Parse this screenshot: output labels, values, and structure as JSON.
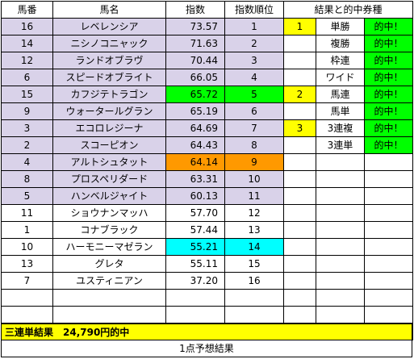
{
  "headers": [
    "馬番",
    "馬名",
    "指数",
    "指数順位",
    "結果と的中券種"
  ],
  "rows": [
    {
      "num": "16",
      "name": "レベレンシア",
      "index": "73.57",
      "rank": "1",
      "res": "1",
      "bet": "単勝",
      "hit": "的中！"
    },
    {
      "num": "14",
      "name": "ニシノコニャック",
      "index": "71.63",
      "rank": "2",
      "res": "",
      "bet": "複勝",
      "hit": "的中！"
    },
    {
      "num": "12",
      "name": "ランドオブラヴ",
      "index": "70.44",
      "rank": "3",
      "res": "",
      "bet": "枠連",
      "hit": "的中！"
    },
    {
      "num": "6",
      "name": "スピードオブライト",
      "index": "66.05",
      "rank": "4",
      "res": "",
      "bet": "ワイド",
      "hit": "的中！"
    },
    {
      "num": "15",
      "name": "カフジテトラゴン",
      "index": "65.72",
      "rank": "5",
      "res": "2",
      "bet": "馬連",
      "hit": "的中！"
    },
    {
      "num": "9",
      "name": "ウォータールグラン",
      "index": "65.19",
      "rank": "6",
      "res": "",
      "bet": "馬単",
      "hit": "的中！"
    },
    {
      "num": "3",
      "name": "エコロレジーナ",
      "index": "64.69",
      "rank": "7",
      "res": "3",
      "bet": "3連複",
      "hit": "的中！"
    },
    {
      "num": "2",
      "name": "スコーピオン",
      "index": "64.43",
      "rank": "8",
      "res": "",
      "bet": "3連単",
      "hit": "的中！"
    },
    {
      "num": "4",
      "name": "アルトシュタット",
      "index": "64.14",
      "rank": "9",
      "res": "",
      "bet": "",
      "hit": ""
    },
    {
      "num": "8",
      "name": "プロスペリダード",
      "index": "63.31",
      "rank": "10",
      "res": "",
      "bet": "",
      "hit": ""
    },
    {
      "num": "5",
      "name": "ハンベルジャイト",
      "index": "60.13",
      "rank": "11",
      "res": "",
      "bet": "",
      "hit": ""
    },
    {
      "num": "11",
      "name": "ショウナンマッハ",
      "index": "57.70",
      "rank": "12",
      "res": "",
      "bet": "",
      "hit": ""
    },
    {
      "num": "1",
      "name": "コナブラック",
      "index": "57.44",
      "rank": "13",
      "res": "",
      "bet": "",
      "hit": ""
    },
    {
      "num": "10",
      "name": "ハーモニーマゼラン",
      "index": "55.21",
      "rank": "14",
      "res": "",
      "bet": "",
      "hit": ""
    },
    {
      "num": "13",
      "name": "グレタ",
      "index": "55.11",
      "rank": "15",
      "res": "",
      "bet": "",
      "hit": ""
    },
    {
      "num": "7",
      "name": "ユスティニアン",
      "index": "37.20",
      "rank": "16",
      "res": "",
      "bet": "",
      "hit": ""
    },
    {
      "num": "",
      "name": "",
      "index": "",
      "rank": "",
      "res": "",
      "bet": "",
      "hit": ""
    },
    {
      "num": "",
      "name": "",
      "index": "",
      "rank": "",
      "res": "",
      "bet": "",
      "hit": ""
    },
    {
      "num": "",
      "name": "",
      "index": "",
      "rank": "",
      "res": "",
      "bet": "",
      "hit": ""
    }
  ],
  "banner": "三連単結果　24,790円的中",
  "footer": "1点予想結果",
  "colors": {
    "lavender": "#d9d2e9",
    "lime": "#00ff00",
    "yellow": "#ffff00",
    "orange": "#ff9900",
    "cyan": "#00ffff"
  }
}
